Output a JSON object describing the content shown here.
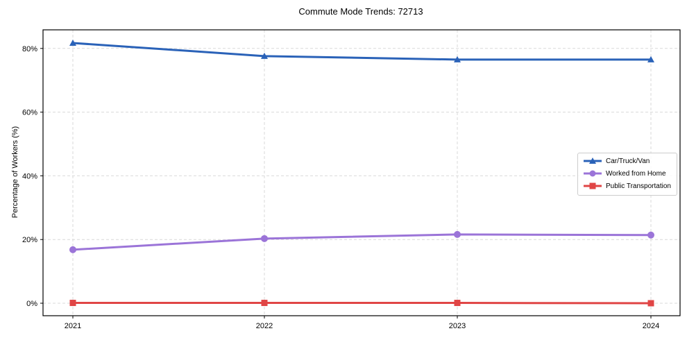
{
  "chart_data": {
    "type": "line",
    "title": "Commute Mode Trends: 72713",
    "xlabel": "",
    "ylabel": "Percentage of Workers (%)",
    "categories": [
      "2021",
      "2022",
      "2023",
      "2024"
    ],
    "yticks": [
      "0%",
      "20%",
      "40%",
      "60%",
      "80%"
    ],
    "ylim": [
      -4,
      86
    ],
    "grid": true,
    "legend_position": "center right",
    "series": [
      {
        "name": "Car/Truck/Van",
        "color": "#2a62b8",
        "marker": "triangle",
        "values": [
          81.7,
          77.6,
          76.5,
          76.5
        ]
      },
      {
        "name": "Worked from Home",
        "color": "#9b74d8",
        "marker": "circle",
        "values": [
          16.8,
          20.3,
          21.6,
          21.4
        ]
      },
      {
        "name": "Public Transportation",
        "color": "#e04545",
        "marker": "square",
        "values": [
          0.1,
          0.1,
          0.1,
          0.0
        ]
      }
    ]
  },
  "labels": {
    "title": "Commute Mode Trends: 72713",
    "ylabel": "Percentage of Workers (%)",
    "legend": [
      "Car/Truck/Van",
      "Worked from Home",
      "Public Transportation"
    ]
  }
}
